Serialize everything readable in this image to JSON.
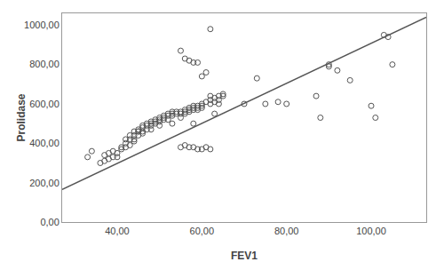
{
  "chart_data": {
    "type": "scatter",
    "xlabel": "FEV1",
    "ylabel": "Prolidase",
    "xlim": [
      27,
      113
    ],
    "ylim": [
      0,
      1060
    ],
    "xticks": [
      {
        "value": 40,
        "label": "40,00"
      },
      {
        "value": 60,
        "label": "60,00"
      },
      {
        "value": 80,
        "label": "80,00"
      },
      {
        "value": 100,
        "label": "100,00"
      }
    ],
    "yticks": [
      {
        "value": 0,
        "label": "0,00"
      },
      {
        "value": 200,
        "label": "200,00"
      },
      {
        "value": 400,
        "label": "400,00"
      },
      {
        "value": 600,
        "label": "600,00"
      },
      {
        "value": 800,
        "label": "800,00"
      },
      {
        "value": 1000,
        "label": "1000,00"
      }
    ],
    "grid": false,
    "series": [
      {
        "type": "scatter",
        "color": "#555555",
        "marker": "circle-open",
        "x": [
          33,
          34,
          36,
          37,
          37,
          38,
          38,
          39,
          39,
          40,
          40,
          41,
          41,
          42,
          42,
          42,
          43,
          43,
          43,
          44,
          44,
          44,
          44,
          45,
          45,
          45,
          45,
          46,
          46,
          46,
          46,
          47,
          47,
          47,
          48,
          48,
          48,
          48,
          49,
          49,
          49,
          50,
          50,
          50,
          50,
          51,
          51,
          51,
          52,
          52,
          52,
          53,
          53,
          53,
          53,
          54,
          54,
          55,
          55,
          55,
          56,
          56,
          56,
          57,
          57,
          57,
          58,
          58,
          58,
          58,
          59,
          59,
          59,
          60,
          60,
          60,
          61,
          62,
          62,
          63,
          63,
          64,
          64,
          64,
          65,
          65,
          55,
          56,
          57,
          58,
          59,
          60,
          61,
          62,
          70,
          73,
          75,
          78,
          80,
          87,
          88,
          90,
          90,
          92,
          95,
          100,
          101,
          103,
          104,
          105
        ],
        "values": [
          330,
          360,
          300,
          340,
          310,
          320,
          350,
          360,
          330,
          350,
          330,
          380,
          370,
          420,
          400,
          380,
          440,
          420,
          390,
          460,
          440,
          420,
          410,
          470,
          460,
          440,
          460,
          490,
          480,
          460,
          450,
          500,
          490,
          470,
          510,
          500,
          490,
          470,
          520,
          510,
          500,
          530,
          520,
          510,
          490,
          540,
          530,
          520,
          550,
          540,
          520,
          560,
          550,
          540,
          500,
          560,
          550,
          560,
          550,
          530,
          570,
          560,
          550,
          580,
          570,
          560,
          590,
          580,
          570,
          500,
          590,
          580,
          570,
          600,
          590,
          580,
          610,
          620,
          600,
          630,
          610,
          640,
          620,
          600,
          650,
          640,
          380,
          390,
          380,
          380,
          370,
          370,
          380,
          370,
          600,
          730,
          600,
          610,
          600,
          640,
          530,
          800,
          790,
          770,
          720,
          590,
          530,
          950,
          940,
          800
        ]
      },
      {
        "type": "scatter",
        "color": "#555555",
        "marker": "circle-open",
        "x": [
          62,
          55,
          56,
          57,
          58,
          59,
          60,
          61,
          62,
          63
        ],
        "values": [
          980,
          870,
          830,
          820,
          810,
          810,
          740,
          760,
          640,
          550
        ]
      },
      {
        "type": "line",
        "color": "#555555",
        "line_style": "solid",
        "x": [
          27,
          113
        ],
        "values": [
          165,
          1040
        ]
      }
    ]
  }
}
